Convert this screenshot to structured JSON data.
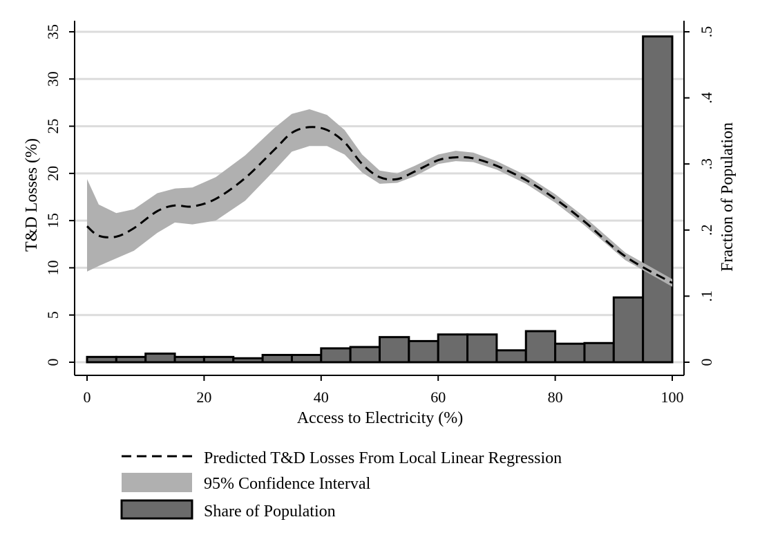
{
  "chart_data": {
    "type": "bar",
    "xlabel": "Access to Electricity (%)",
    "ylabel": "T&D Losses (%)",
    "y2label": "Fraction of Population",
    "xlim": [
      0,
      100
    ],
    "ylim": [
      0,
      35
    ],
    "y2lim": [
      0,
      0.5
    ],
    "xticks": [
      "0",
      "20",
      "40",
      "60",
      "80",
      "100"
    ],
    "yticks": [
      "0",
      "5",
      "10",
      "15",
      "20",
      "25",
      "30",
      "35"
    ],
    "y2ticks": [
      "0",
      ".1",
      ".2",
      ".3",
      ".4",
      ".5"
    ],
    "xtick_values": [
      0,
      20,
      40,
      60,
      80,
      100
    ],
    "ytick_values": [
      0,
      5,
      10,
      15,
      20,
      25,
      30,
      35
    ],
    "y2tick_values": [
      0,
      0.1,
      0.2,
      0.3,
      0.4,
      0.5
    ],
    "grid": true,
    "legend_position": "bottom",
    "colors": {
      "line": "#000000",
      "ci_band": "#b0b0b0",
      "bar_fill": "#6b6b6b",
      "bar_edge": "#000000",
      "grid": "#dcdcdc"
    },
    "series": [
      {
        "name": "Predicted T&D Losses From Local Linear Regression",
        "kind": "line",
        "axis": "left",
        "x": [
          0,
          2,
          5,
          8,
          12,
          15,
          18,
          22,
          27,
          32,
          35,
          38,
          41,
          44,
          47,
          50,
          53,
          56,
          60,
          63,
          66,
          70,
          75,
          80,
          85,
          92,
          100
        ],
        "y": [
          14.4,
          13.4,
          13.3,
          14.2,
          16.0,
          16.6,
          16.5,
          17.3,
          19.5,
          22.5,
          24.3,
          24.9,
          24.6,
          23.3,
          21.0,
          19.6,
          19.4,
          20.2,
          21.4,
          21.7,
          21.6,
          20.8,
          19.3,
          17.3,
          14.9,
          11.2,
          8.4
        ]
      },
      {
        "name": "95% Confidence Interval",
        "kind": "band",
        "axis": "left",
        "x": [
          0,
          2,
          5,
          8,
          12,
          15,
          18,
          22,
          27,
          32,
          35,
          38,
          41,
          44,
          47,
          50,
          53,
          56,
          60,
          63,
          66,
          70,
          75,
          80,
          85,
          92,
          100
        ],
        "lower": [
          9.6,
          10.2,
          11.0,
          11.8,
          13.7,
          14.8,
          14.6,
          15.0,
          17.1,
          20.3,
          22.3,
          22.9,
          22.9,
          22.0,
          20.1,
          18.9,
          19.0,
          19.7,
          21.0,
          21.3,
          21.2,
          20.4,
          18.9,
          16.9,
          14.5,
          10.8,
          8.0
        ],
        "upper": [
          19.4,
          16.7,
          15.8,
          16.2,
          17.9,
          18.4,
          18.5,
          19.6,
          21.9,
          24.8,
          26.3,
          26.8,
          26.2,
          24.6,
          22.0,
          20.3,
          20.0,
          20.8,
          22.0,
          22.4,
          22.2,
          21.3,
          19.8,
          17.8,
          15.4,
          11.6,
          8.8
        ]
      },
      {
        "name": "Share of Population",
        "kind": "bar",
        "axis": "right",
        "bin_width": 5,
        "bin_starts": [
          0,
          5,
          10,
          15,
          20,
          25,
          30,
          35,
          40,
          45,
          50,
          55,
          60,
          65,
          70,
          75,
          80,
          85,
          90,
          95
        ],
        "values": [
          0.008,
          0.008,
          0.013,
          0.008,
          0.008,
          0.006,
          0.011,
          0.011,
          0.021,
          0.023,
          0.038,
          0.032,
          0.042,
          0.042,
          0.018,
          0.047,
          0.028,
          0.029,
          0.098,
          0.493
        ]
      }
    ]
  }
}
